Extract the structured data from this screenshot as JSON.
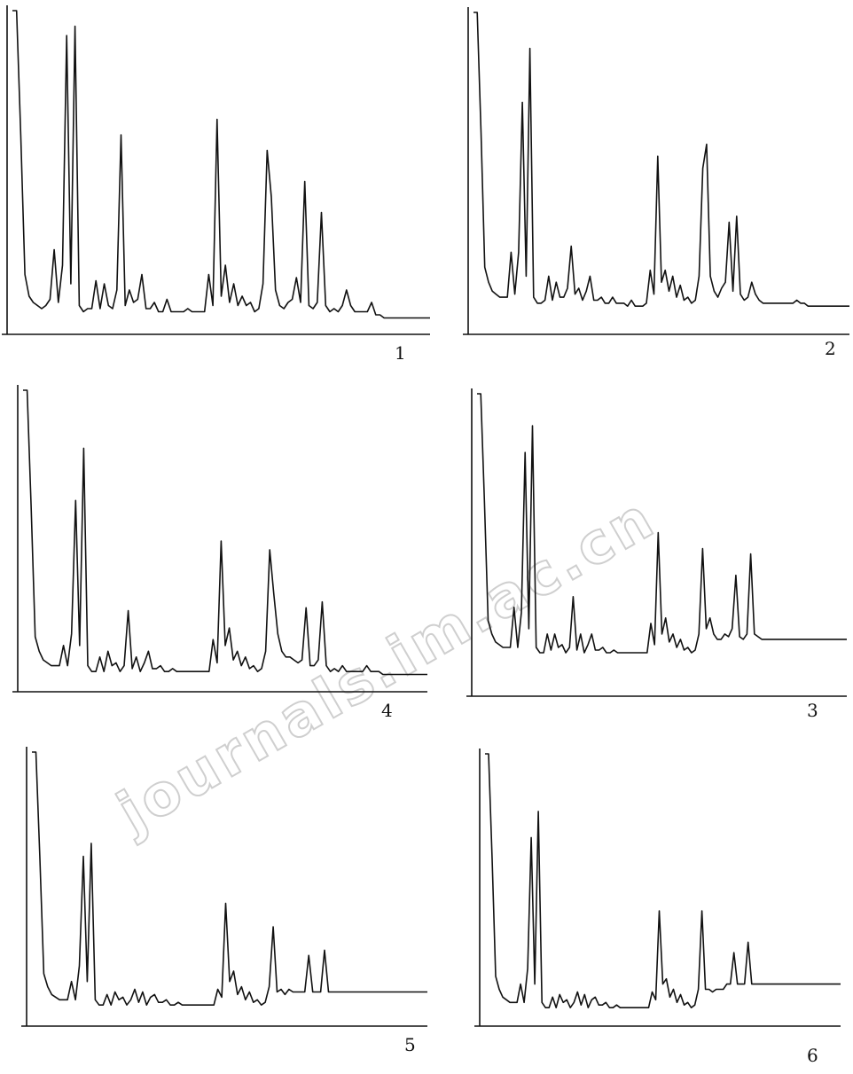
{
  "watermark": "journals.im.ac.cn",
  "chart_data": [
    {
      "type": "line",
      "panel_label": "1",
      "title": "",
      "xlabel": "",
      "ylabel": "",
      "grid": false,
      "ylim": [
        0,
        100
      ],
      "x": [
        0,
        1,
        2,
        3,
        4,
        5,
        6,
        7,
        8,
        9,
        10,
        11,
        12,
        13,
        14,
        15,
        16,
        17,
        18,
        19,
        20,
        21,
        22,
        23,
        24,
        25,
        26,
        27,
        28,
        29,
        30,
        31,
        32,
        33,
        34,
        35,
        36,
        37,
        38,
        39,
        40,
        41,
        42,
        43,
        44,
        45,
        46,
        47,
        48,
        49,
        50,
        51,
        52,
        53,
        54,
        55,
        56,
        57,
        58,
        59,
        60,
        61,
        62,
        63,
        64,
        65,
        66,
        67,
        68,
        69,
        70,
        71,
        72,
        73,
        74,
        75,
        76,
        77,
        78,
        79,
        80,
        81,
        82,
        83,
        84,
        85,
        86,
        87,
        88,
        89,
        90,
        91,
        92,
        93,
        94,
        95,
        96,
        97,
        98,
        99,
        100
      ],
      "series": [
        {
          "values": [
            100,
            100,
            60,
            15,
            8,
            6,
            5,
            4,
            5,
            7,
            23,
            6,
            18,
            92,
            12,
            95,
            5,
            3,
            4,
            4,
            13,
            4,
            12,
            5,
            4,
            10,
            60,
            5,
            10,
            6,
            7,
            15,
            4,
            4,
            6,
            3,
            3,
            7,
            3,
            3,
            3,
            3,
            4,
            3,
            3,
            3,
            3,
            15,
            5,
            65,
            8,
            18,
            6,
            12,
            5,
            8,
            5,
            6,
            3,
            4,
            12,
            55,
            40,
            10,
            5,
            4,
            6,
            7,
            14,
            6,
            45,
            5,
            4,
            6,
            35,
            5,
            3,
            4,
            3,
            5,
            10,
            5,
            3,
            3,
            3,
            3,
            6,
            2,
            2,
            1,
            1,
            1,
            1,
            1,
            1,
            1,
            1,
            1,
            1,
            1,
            1
          ]
        }
      ]
    },
    {
      "type": "line",
      "panel_label": "2",
      "title": "",
      "xlabel": "",
      "ylabel": "",
      "grid": false,
      "ylim": [
        0,
        100
      ],
      "x": [
        0,
        1,
        2,
        3,
        4,
        5,
        6,
        7,
        8,
        9,
        10,
        11,
        12,
        13,
        14,
        15,
        16,
        17,
        18,
        19,
        20,
        21,
        22,
        23,
        24,
        25,
        26,
        27,
        28,
        29,
        30,
        31,
        32,
        33,
        34,
        35,
        36,
        37,
        38,
        39,
        40,
        41,
        42,
        43,
        44,
        45,
        46,
        47,
        48,
        49,
        50,
        51,
        52,
        53,
        54,
        55,
        56,
        57,
        58,
        59,
        60,
        61,
        62,
        63,
        64,
        65,
        66,
        67,
        68,
        69,
        70,
        71,
        72,
        73,
        74,
        75,
        76,
        77,
        78,
        79,
        80,
        81,
        82,
        83,
        84,
        85,
        86,
        87,
        88,
        89,
        90,
        91,
        92,
        93,
        94,
        95,
        96,
        97,
        98,
        99,
        100
      ],
      "series": [
        {
          "values": [
            100,
            100,
            60,
            15,
            10,
            7,
            6,
            5,
            5,
            5,
            20,
            6,
            20,
            70,
            12,
            88,
            5,
            3,
            3,
            4,
            12,
            4,
            10,
            5,
            5,
            8,
            22,
            6,
            8,
            4,
            7,
            12,
            4,
            4,
            5,
            3,
            3,
            5,
            3,
            3,
            3,
            2,
            4,
            2,
            2,
            2,
            3,
            14,
            6,
            52,
            10,
            14,
            7,
            12,
            5,
            9,
            4,
            5,
            3,
            4,
            12,
            48,
            56,
            12,
            7,
            5,
            8,
            10,
            30,
            7,
            32,
            6,
            4,
            5,
            10,
            6,
            4,
            3,
            3,
            3,
            3,
            3,
            3,
            3,
            3,
            3,
            4,
            3,
            3,
            2,
            2,
            2,
            2,
            2,
            2,
            2,
            2,
            2,
            2,
            2,
            2
          ]
        }
      ]
    },
    {
      "type": "line",
      "panel_label": "4",
      "title": "",
      "xlabel": "",
      "ylabel": "",
      "grid": false,
      "ylim": [
        0,
        100
      ],
      "x": [
        0,
        1,
        2,
        3,
        4,
        5,
        6,
        7,
        8,
        9,
        10,
        11,
        12,
        13,
        14,
        15,
        16,
        17,
        18,
        19,
        20,
        21,
        22,
        23,
        24,
        25,
        26,
        27,
        28,
        29,
        30,
        31,
        32,
        33,
        34,
        35,
        36,
        37,
        38,
        39,
        40,
        41,
        42,
        43,
        44,
        45,
        46,
        47,
        48,
        49,
        50,
        51,
        52,
        53,
        54,
        55,
        56,
        57,
        58,
        59,
        60,
        61,
        62,
        63,
        64,
        65,
        66,
        67,
        68,
        69,
        70,
        71,
        72,
        73,
        74,
        75,
        76,
        77,
        78,
        79,
        80,
        81,
        82,
        83,
        84,
        85,
        86,
        87,
        88,
        89,
        90,
        91,
        92,
        93,
        94,
        95,
        96,
        97,
        98,
        99,
        100
      ],
      "series": [
        {
          "values": [
            100,
            100,
            60,
            15,
            10,
            7,
            6,
            5,
            5,
            5,
            12,
            5,
            16,
            62,
            12,
            80,
            5,
            3,
            3,
            8,
            3,
            10,
            5,
            6,
            3,
            5,
            24,
            4,
            8,
            3,
            6,
            10,
            4,
            4,
            5,
            3,
            3,
            4,
            3,
            3,
            3,
            3,
            3,
            3,
            3,
            3,
            3,
            14,
            6,
            48,
            12,
            18,
            7,
            10,
            5,
            8,
            4,
            5,
            3,
            4,
            10,
            45,
            30,
            16,
            10,
            8,
            8,
            7,
            6,
            7,
            25,
            5,
            5,
            7,
            27,
            5,
            3,
            4,
            3,
            5,
            3,
            3,
            3,
            3,
            3,
            5,
            3,
            3,
            3,
            2,
            2,
            2,
            2,
            2,
            2,
            2,
            2,
            2,
            2,
            2,
            2
          ]
        }
      ]
    },
    {
      "type": "line",
      "panel_label": "3",
      "title": "",
      "xlabel": "",
      "ylabel": "",
      "grid": false,
      "ylim": [
        0,
        100
      ],
      "x": [
        0,
        1,
        2,
        3,
        4,
        5,
        6,
        7,
        8,
        9,
        10,
        11,
        12,
        13,
        14,
        15,
        16,
        17,
        18,
        19,
        20,
        21,
        22,
        23,
        24,
        25,
        26,
        27,
        28,
        29,
        30,
        31,
        32,
        33,
        34,
        35,
        36,
        37,
        38,
        39,
        40,
        41,
        42,
        43,
        44,
        45,
        46,
        47,
        48,
        49,
        50,
        51,
        52,
        53,
        54,
        55,
        56,
        57,
        58,
        59,
        60,
        61,
        62,
        63,
        64,
        65,
        66,
        67,
        68,
        69,
        70,
        71,
        72,
        73,
        74,
        75,
        76,
        77,
        78,
        79,
        80,
        81,
        82,
        83,
        84,
        85,
        86,
        87,
        88,
        89,
        90,
        91,
        92,
        93,
        94,
        95,
        96,
        97,
        98,
        99,
        100
      ],
      "series": [
        {
          "values": [
            100,
            100,
            60,
            15,
            10,
            7,
            6,
            5,
            5,
            5,
            20,
            5,
            18,
            78,
            12,
            88,
            5,
            3,
            3,
            10,
            4,
            10,
            5,
            6,
            3,
            5,
            24,
            4,
            10,
            3,
            6,
            10,
            4,
            4,
            5,
            3,
            3,
            4,
            3,
            3,
            3,
            3,
            3,
            3,
            3,
            3,
            3,
            14,
            6,
            48,
            10,
            16,
            7,
            10,
            5,
            8,
            4,
            5,
            3,
            4,
            10,
            42,
            12,
            16,
            10,
            8,
            8,
            10,
            9,
            12,
            32,
            9,
            8,
            10,
            40,
            10,
            9,
            8,
            8,
            8,
            8,
            8,
            8,
            8,
            8,
            8,
            8,
            8,
            8,
            8,
            8,
            8,
            8,
            8,
            8,
            8,
            8,
            8,
            8,
            8,
            8
          ]
        }
      ]
    },
    {
      "type": "line",
      "panel_label": "5",
      "title": "",
      "xlabel": "",
      "ylabel": "",
      "grid": false,
      "ylim": [
        0,
        100
      ],
      "x": [
        0,
        1,
        2,
        3,
        4,
        5,
        6,
        7,
        8,
        9,
        10,
        11,
        12,
        13,
        14,
        15,
        16,
        17,
        18,
        19,
        20,
        21,
        22,
        23,
        24,
        25,
        26,
        27,
        28,
        29,
        30,
        31,
        32,
        33,
        34,
        35,
        36,
        37,
        38,
        39,
        40,
        41,
        42,
        43,
        44,
        45,
        46,
        47,
        48,
        49,
        50,
        51,
        52,
        53,
        54,
        55,
        56,
        57,
        58,
        59,
        60,
        61,
        62,
        63,
        64,
        65,
        66,
        67,
        68,
        69,
        70,
        71,
        72,
        73,
        74,
        75,
        76,
        77,
        78,
        79,
        80,
        81,
        82,
        83,
        84,
        85,
        86,
        87,
        88,
        89,
        90,
        91,
        92,
        93,
        94,
        95,
        96,
        97,
        98,
        99,
        100
      ],
      "series": [
        {
          "values": [
            100,
            100,
            60,
            15,
            10,
            7,
            6,
            5,
            5,
            5,
            12,
            5,
            18,
            60,
            12,
            65,
            5,
            3,
            3,
            7,
            3,
            8,
            5,
            6,
            3,
            5,
            9,
            4,
            8,
            3,
            6,
            7,
            4,
            4,
            5,
            3,
            3,
            4,
            3,
            3,
            3,
            3,
            3,
            3,
            3,
            3,
            3,
            9,
            6,
            42,
            12,
            16,
            7,
            10,
            5,
            8,
            4,
            5,
            3,
            4,
            10,
            33,
            8,
            9,
            7,
            9,
            8,
            8,
            8,
            8,
            22,
            8,
            8,
            8,
            24,
            8,
            8,
            8,
            8,
            8,
            8,
            8,
            8,
            8,
            8,
            8,
            8,
            8,
            8,
            8,
            8,
            8,
            8,
            8,
            8,
            8,
            8,
            8,
            8,
            8,
            8
          ]
        }
      ]
    },
    {
      "type": "line",
      "panel_label": "6",
      "title": "",
      "xlabel": "",
      "ylabel": "",
      "grid": false,
      "ylim": [
        0,
        100
      ],
      "x": [
        0,
        1,
        2,
        3,
        4,
        5,
        6,
        7,
        8,
        9,
        10,
        11,
        12,
        13,
        14,
        15,
        16,
        17,
        18,
        19,
        20,
        21,
        22,
        23,
        24,
        25,
        26,
        27,
        28,
        29,
        30,
        31,
        32,
        33,
        34,
        35,
        36,
        37,
        38,
        39,
        40,
        41,
        42,
        43,
        44,
        45,
        46,
        47,
        48,
        49,
        50,
        51,
        52,
        53,
        54,
        55,
        56,
        57,
        58,
        59,
        60,
        61,
        62,
        63,
        64,
        65,
        66,
        67,
        68,
        69,
        70,
        71,
        72,
        73,
        74,
        75,
        76,
        77,
        78,
        79,
        80,
        81,
        82,
        83,
        84,
        85,
        86,
        87,
        88,
        89,
        90,
        91,
        92,
        93,
        94,
        95,
        96,
        97,
        98,
        99,
        100
      ],
      "series": [
        {
          "values": [
            100,
            100,
            60,
            15,
            10,
            7,
            6,
            5,
            5,
            5,
            12,
            5,
            18,
            68,
            12,
            78,
            5,
            3,
            3,
            7,
            3,
            8,
            5,
            6,
            3,
            5,
            9,
            4,
            8,
            3,
            6,
            7,
            4,
            4,
            5,
            3,
            3,
            4,
            3,
            3,
            3,
            3,
            3,
            3,
            3,
            3,
            3,
            9,
            6,
            40,
            12,
            14,
            7,
            10,
            5,
            8,
            4,
            5,
            3,
            4,
            10,
            40,
            10,
            10,
            9,
            10,
            10,
            10,
            12,
            12,
            24,
            12,
            12,
            12,
            28,
            12,
            12,
            12,
            12,
            12,
            12,
            12,
            12,
            12,
            12,
            12,
            12,
            12,
            12,
            12,
            12,
            12,
            12,
            12,
            12,
            12,
            12,
            12,
            12,
            12,
            12
          ]
        }
      ]
    }
  ]
}
